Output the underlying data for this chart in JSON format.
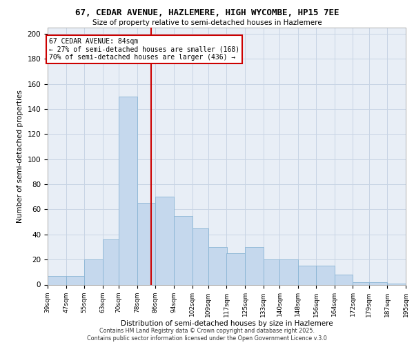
{
  "title_line1": "67, CEDAR AVENUE, HAZLEMERE, HIGH WYCOMBE, HP15 7EE",
  "title_line2": "Size of property relative to semi-detached houses in Hazlemere",
  "xlabel": "Distribution of semi-detached houses by size in Hazlemere",
  "ylabel": "Number of semi-detached properties",
  "property_size": 84,
  "property_label": "67 CEDAR AVENUE: 84sqm",
  "annotation_line1": "← 27% of semi-detached houses are smaller (168)",
  "annotation_line2": "70% of semi-detached houses are larger (436) →",
  "footer_line1": "Contains HM Land Registry data © Crown copyright and database right 2025.",
  "footer_line2": "Contains public sector information licensed under the Open Government Licence v.3.0",
  "bin_labels": [
    "39sqm",
    "47sqm",
    "55sqm",
    "63sqm",
    "70sqm",
    "78sqm",
    "86sqm",
    "94sqm",
    "102sqm",
    "109sqm",
    "117sqm",
    "125sqm",
    "133sqm",
    "140sqm",
    "148sqm",
    "156sqm",
    "164sqm",
    "172sqm",
    "179sqm",
    "187sqm",
    "195sqm"
  ],
  "bin_edges": [
    39,
    47,
    55,
    63,
    70,
    78,
    86,
    94,
    102,
    109,
    117,
    125,
    133,
    140,
    148,
    156,
    164,
    172,
    179,
    187,
    195
  ],
  "counts": [
    7,
    7,
    20,
    36,
    150,
    65,
    70,
    55,
    45,
    30,
    25,
    30,
    20,
    20,
    15,
    15,
    8,
    2,
    2,
    1
  ],
  "bar_color": "#c5d8ed",
  "bar_edgecolor": "#89b4d4",
  "line_color": "#cc0000",
  "box_edgecolor": "#cc0000",
  "grid_color": "#c8d4e4",
  "bg_color": "#e8eef6",
  "ylim": [
    0,
    205
  ],
  "yticks": [
    0,
    20,
    40,
    60,
    80,
    100,
    120,
    140,
    160,
    180,
    200
  ]
}
